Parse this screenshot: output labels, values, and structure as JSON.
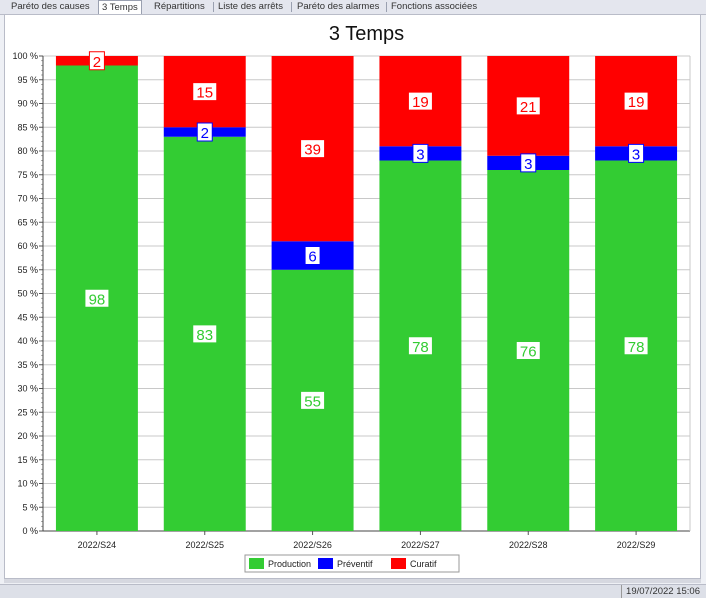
{
  "tabs": [
    {
      "label": "Paréto des causes",
      "active": false
    },
    {
      "label": "3 Temps",
      "active": true
    },
    {
      "label": "Répartitions",
      "active": false
    },
    {
      "label": "Liste des arrêts",
      "active": false
    },
    {
      "label": "Paréto des alarmes",
      "active": false
    },
    {
      "label": "Fonctions associées",
      "active": false
    }
  ],
  "status": {
    "datetime": "19/07/2022 15:06"
  },
  "colors": {
    "production": "#33cc33",
    "preventif": "#0000ff",
    "curatif": "#ff0000"
  },
  "chart_data": {
    "type": "bar",
    "stacked": true,
    "title": "3 Temps",
    "categories": [
      "2022/S24",
      "2022/S25",
      "2022/S26",
      "2022/S27",
      "2022/S28",
      "2022/S29"
    ],
    "series": [
      {
        "name": "Production",
        "values": [
          98,
          83,
          55,
          78,
          76,
          78
        ]
      },
      {
        "name": "Préventif",
        "values": [
          0,
          2,
          6,
          3,
          3,
          3
        ]
      },
      {
        "name": "Curatif",
        "values": [
          2,
          15,
          39,
          19,
          21,
          19
        ]
      }
    ],
    "ylim": [
      0,
      100
    ],
    "yticks": [
      "0 %",
      "5 %",
      "10 %",
      "15 %",
      "20 %",
      "25 %",
      "30 %",
      "35 %",
      "40 %",
      "45 %",
      "50 %",
      "55 %",
      "60 %",
      "65 %",
      "70 %",
      "75 %",
      "80 %",
      "85 %",
      "90 %",
      "95 %",
      "100 %"
    ],
    "grid": true,
    "legend_position": "bottom"
  }
}
